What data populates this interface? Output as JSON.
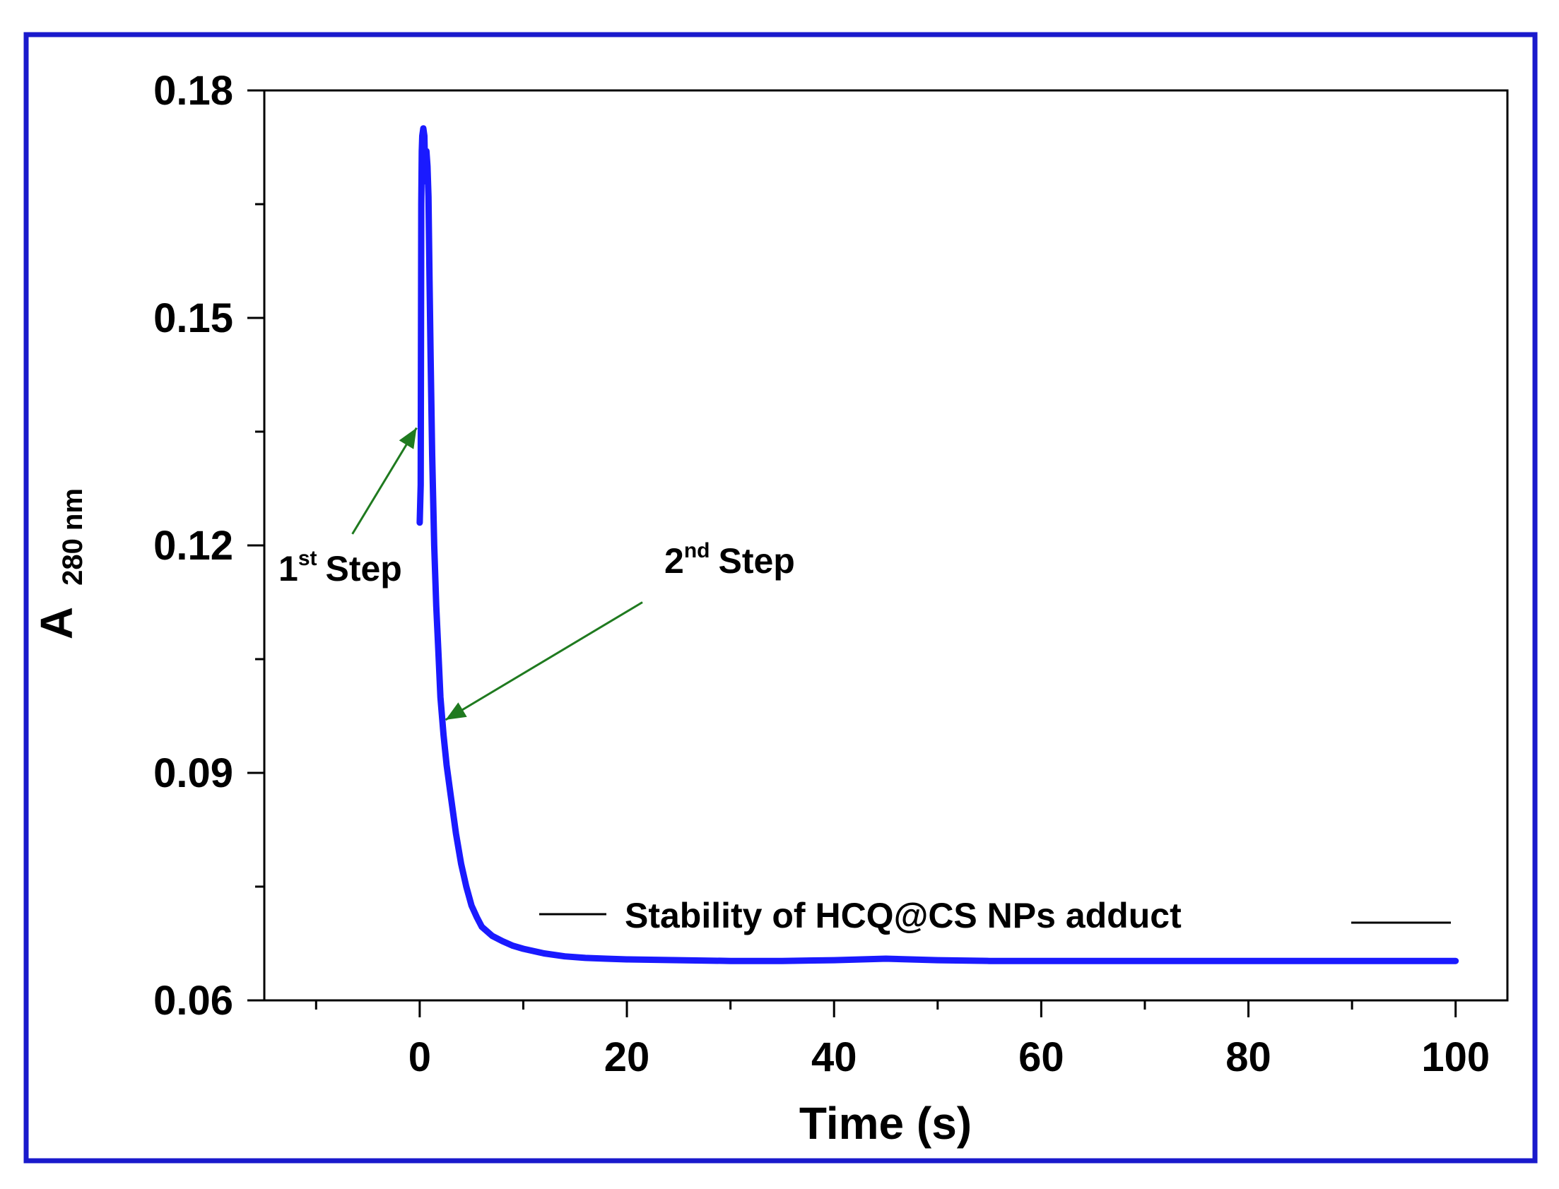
{
  "chart_data": {
    "type": "line",
    "title": "",
    "xlabel": "Time (s)",
    "ylabel_main": "A",
    "ylabel_sub": "280 nm",
    "xlim": [
      -15,
      105
    ],
    "ylim": [
      0.06,
      0.18
    ],
    "xticks": [
      0,
      20,
      40,
      60,
      80,
      100
    ],
    "xtick_labels": [
      "0",
      "20",
      "40",
      "60",
      "80",
      "100"
    ],
    "x_minor_ticks": [
      -10,
      10,
      30,
      50,
      70,
      90
    ],
    "yticks": [
      0.06,
      0.09,
      0.12,
      0.15,
      0.18
    ],
    "ytick_labels": [
      "0.06",
      "0.09",
      "0.12",
      "0.15",
      "0.18"
    ],
    "y_minor_ticks": [
      0.075,
      0.105,
      0.135,
      0.165
    ],
    "legend_position": "bottom-right",
    "colors": {
      "series": "#1a1aff",
      "arrow": "#1f7a1f",
      "border": "#1a1acc",
      "axis": "#000000"
    },
    "series": [
      {
        "name": "Stability of HCQ@CS NPs adduct",
        "x": [
          0.0,
          0.1,
          0.15,
          0.2,
          0.25,
          0.35,
          0.45,
          0.55,
          0.65,
          0.75,
          0.85,
          0.95,
          1.05,
          1.2,
          1.4,
          1.6,
          1.8,
          2.0,
          2.3,
          2.6,
          3.0,
          3.5,
          4.0,
          4.5,
          5.0,
          5.5,
          6.0,
          7.0,
          8.0,
          9.0,
          10.0,
          12.0,
          14.0,
          16.0,
          18.0,
          20.0,
          25.0,
          30.0,
          35.0,
          40.0,
          45.0,
          50.0,
          55.0,
          60.0,
          70.0,
          80.0,
          90.0,
          100.0
        ],
        "values": [
          0.123,
          0.128,
          0.165,
          0.172,
          0.174,
          0.175,
          0.174,
          0.168,
          0.172,
          0.17,
          0.166,
          0.155,
          0.145,
          0.132,
          0.12,
          0.112,
          0.106,
          0.1,
          0.095,
          0.091,
          0.087,
          0.082,
          0.078,
          0.075,
          0.0725,
          0.071,
          0.0697,
          0.0685,
          0.0678,
          0.0672,
          0.0668,
          0.0662,
          0.0658,
          0.0656,
          0.0655,
          0.0654,
          0.0653,
          0.0652,
          0.0652,
          0.0653,
          0.0655,
          0.0653,
          0.0652,
          0.0652,
          0.0652,
          0.0652,
          0.0652,
          0.0652
        ]
      }
    ],
    "annotations": [
      {
        "text": "1",
        "sup": "st",
        "label": "Step",
        "arrow_from": [
          -6.5,
          0.1215
        ],
        "arrow_to": [
          -0.3,
          0.1355
        ]
      },
      {
        "text": "2",
        "sup": "nd",
        "label": "Step",
        "arrow_from": [
          21.5,
          0.1125
        ],
        "arrow_to": [
          2.5,
          0.097
        ]
      }
    ]
  }
}
